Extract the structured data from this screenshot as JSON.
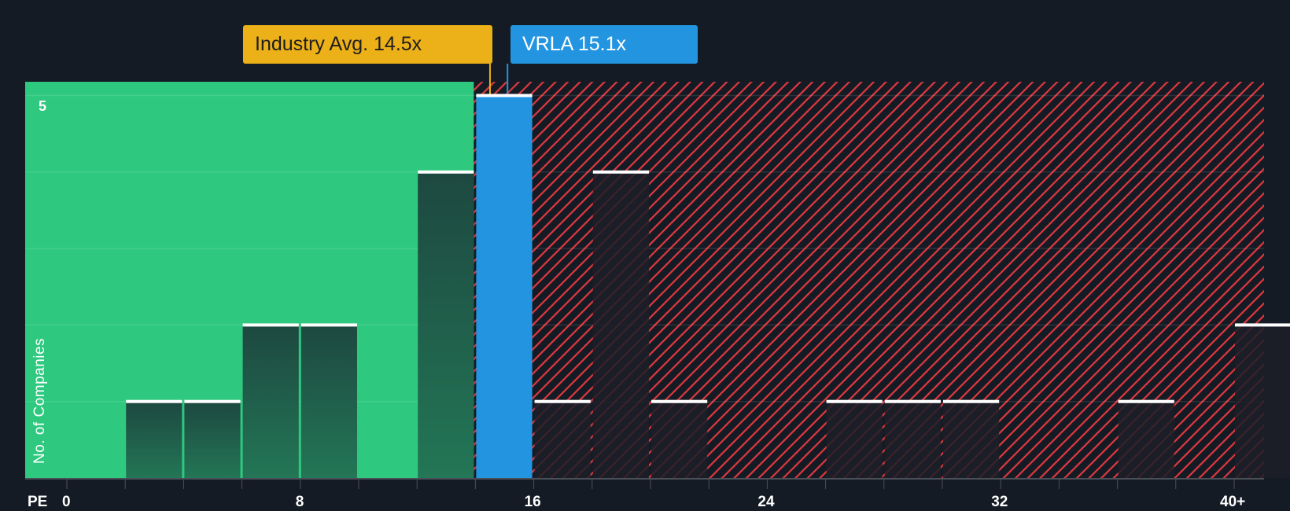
{
  "chart_data": {
    "type": "bar",
    "title": "",
    "xlabel": "PE",
    "ylabel": "No. of Companies",
    "x_ticks": [
      "0",
      "8",
      "16",
      "24",
      "32",
      "40+"
    ],
    "x_tick_values": [
      0,
      8,
      16,
      24,
      32,
      40
    ],
    "y_ticks": [
      "5"
    ],
    "ylim": [
      0,
      5
    ],
    "xlim": [
      0,
      41.5
    ],
    "bins": [
      {
        "from": 2,
        "to": 4,
        "count": 1
      },
      {
        "from": 4,
        "to": 6,
        "count": 1
      },
      {
        "from": 6,
        "to": 8,
        "count": 2
      },
      {
        "from": 8,
        "to": 10,
        "count": 2
      },
      {
        "from": 12,
        "to": 14,
        "count": 4
      },
      {
        "from": 14,
        "to": 16,
        "count": 5,
        "highlight": true
      },
      {
        "from": 16,
        "to": 18,
        "count": 1
      },
      {
        "from": 18,
        "to": 20,
        "count": 4
      },
      {
        "from": 20,
        "to": 22,
        "count": 1
      },
      {
        "from": 26,
        "to": 28,
        "count": 1
      },
      {
        "from": 28,
        "to": 30,
        "count": 1
      },
      {
        "from": 30,
        "to": 32,
        "count": 1
      },
      {
        "from": 36,
        "to": 38,
        "count": 1
      },
      {
        "from": 40,
        "to": 42,
        "count": 2
      }
    ],
    "industry_avg": 14.5,
    "company_value": 15.1,
    "annotations": {
      "industry": "Industry Avg. 14.5x",
      "company": "VRLA 15.1x"
    },
    "colors": {
      "good": "#2ec97f",
      "bad": "#e0383e",
      "company": "#2394e0",
      "industry": "#ecb018",
      "bg": "#151b24"
    }
  }
}
